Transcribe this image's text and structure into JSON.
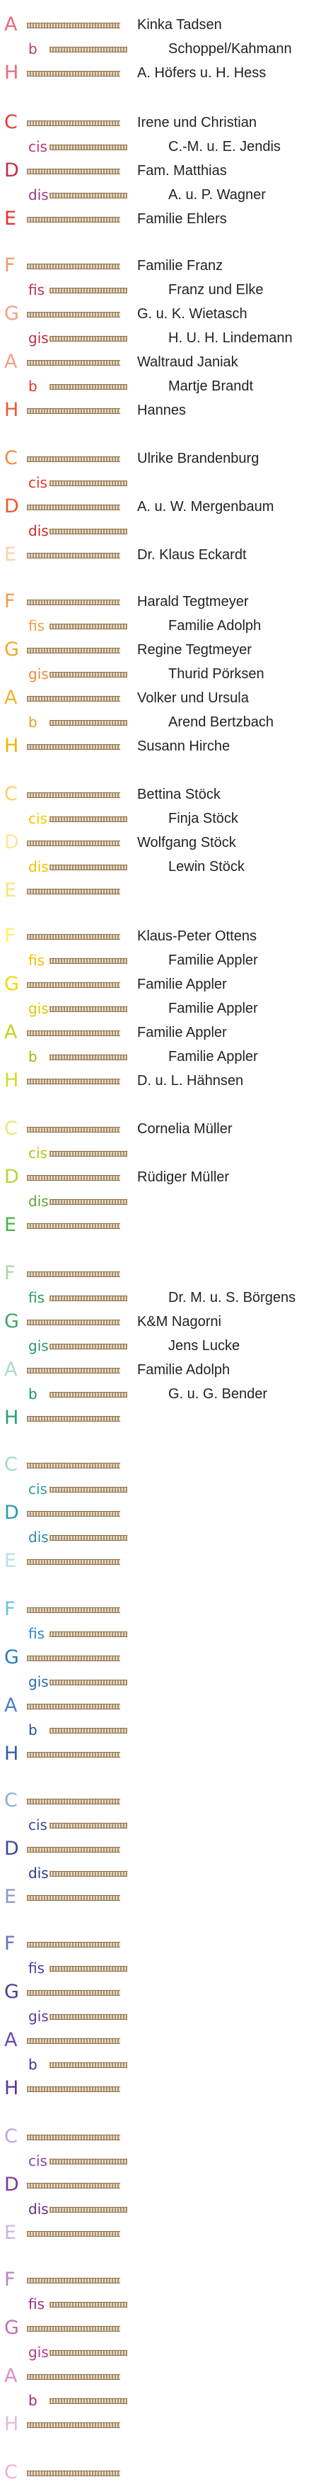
{
  "bells": [
    {
      "note": "A",
      "accidental": false,
      "name": "Kinka Tadsen",
      "color": "#e8697e"
    },
    {
      "note": "b",
      "accidental": true,
      "name": "Schoppel/Kahmann",
      "color": "#b03a89"
    },
    {
      "note": "H",
      "accidental": false,
      "name": "A. Höfers u. H. Hess",
      "color": "#e8697e"
    },
    {
      "note": "C",
      "accidental": false,
      "name": "Irene und Christian",
      "color": "#e53b38"
    },
    {
      "note": "cis",
      "accidental": true,
      "name": "C.-M. u. E. Jendis",
      "color": "#c4317f"
    },
    {
      "note": "D",
      "accidental": false,
      "name": "Fam. Matthias",
      "color": "#c02e4d"
    },
    {
      "note": "dis",
      "accidental": true,
      "name": "A. u. P. Wagner",
      "color": "#9a3a87"
    },
    {
      "note": "E",
      "accidental": false,
      "name": "Familie Ehlers",
      "color": "#e5352f"
    },
    {
      "note": "F",
      "accidental": false,
      "name": "Familie Franz",
      "color": "#f19a6c"
    },
    {
      "note": "fis",
      "accidental": true,
      "name": "Franz und Elke",
      "color": "#c02e4d"
    },
    {
      "note": "G",
      "accidental": false,
      "name": "G. u. K. Wietasch",
      "color": "#f4a08a"
    },
    {
      "note": "gis",
      "accidental": true,
      "name": "H. U. H. Lindemann",
      "color": "#c02e4d"
    },
    {
      "note": "A",
      "accidental": false,
      "name": "Waltraud Janiak",
      "color": "#f4a08a"
    },
    {
      "note": "b",
      "accidental": true,
      "name": "Martje Brandt",
      "color": "#e5352f"
    },
    {
      "note": "H",
      "accidental": false,
      "name": "Hannes",
      "color": "#e95b2c"
    },
    {
      "note": "C",
      "accidental": false,
      "name": "Ulrike Brandenburg",
      "color": "#f28c3c"
    },
    {
      "note": "cis",
      "accidental": true,
      "name": "",
      "color": "#e5352f"
    },
    {
      "note": "D",
      "accidental": false,
      "name": "A. u. W. Mergenbaum",
      "color": "#e95b2c"
    },
    {
      "note": "dis",
      "accidental": true,
      "name": "",
      "color": "#c02e2e"
    },
    {
      "note": "E",
      "accidental": false,
      "name": "Dr. Klaus Eckardt",
      "color": "#fbd2a8"
    },
    {
      "note": "F",
      "accidental": false,
      "name": "Harald Tegtmeyer",
      "color": "#f39b4a"
    },
    {
      "note": "fis",
      "accidental": true,
      "name": "Familie Adolph",
      "color": "#e8a33d"
    },
    {
      "note": "G",
      "accidental": false,
      "name": "Regine Tegtmeyer",
      "color": "#f5a430"
    },
    {
      "note": "gis",
      "accidental": true,
      "name": "Thurid Pörksen",
      "color": "#f28c3c"
    },
    {
      "note": "A",
      "accidental": false,
      "name": "Volker und Ursula",
      "color": "#f5b22e"
    },
    {
      "note": "b",
      "accidental": true,
      "name": "Arend Bertzbach",
      "color": "#e6a11e"
    },
    {
      "note": "H",
      "accidental": false,
      "name": "Susann Hirche",
      "color": "#f6b400"
    },
    {
      "note": "C",
      "accidental": false,
      "name": "Bettina Stöck",
      "color": "#fbd06a"
    },
    {
      "note": "cis",
      "accidental": true,
      "name": "Finja Stöck",
      "color": "#f6c700"
    },
    {
      "note": "D",
      "accidental": false,
      "name": "Wolfgang Stöck",
      "color": "#fde49a"
    },
    {
      "note": "dis",
      "accidental": true,
      "name": "Lewin Stöck",
      "color": "#f2c100"
    },
    {
      "note": "E",
      "accidental": false,
      "name": "",
      "color": "#fbe27a"
    },
    {
      "note": "F",
      "accidental": false,
      "name": "Klaus-Peter Ottens",
      "color": "#fff06a"
    },
    {
      "note": "fis",
      "accidental": true,
      "name": "Familie Appler",
      "color": "#f2c100"
    },
    {
      "note": "G",
      "accidental": false,
      "name": "Familie Appler",
      "color": "#f2d800"
    },
    {
      "note": "gis",
      "accidental": true,
      "name": "Familie Appler",
      "color": "#e3c800"
    },
    {
      "note": "A",
      "accidental": false,
      "name": "Familie Appler",
      "color": "#c8d21e"
    },
    {
      "note": "b",
      "accidental": true,
      "name": "Familie Appler",
      "color": "#b8b000"
    },
    {
      "note": "H",
      "accidental": false,
      "name": "D. u. L. Hähnsen",
      "color": "#d5d92a"
    },
    {
      "note": "C",
      "accidental": false,
      "name": "Cornelia Müller",
      "color": "#e6ea7a"
    },
    {
      "note": "cis",
      "accidental": true,
      "name": "",
      "color": "#b8c020"
    },
    {
      "note": "D",
      "accidental": false,
      "name": "Rüdiger Müller",
      "color": "#b8d33a"
    },
    {
      "note": "dis",
      "accidental": true,
      "name": "",
      "color": "#5aa83a"
    },
    {
      "note": "E",
      "accidental": false,
      "name": "",
      "color": "#4bb04a"
    },
    {
      "note": "F",
      "accidental": false,
      "name": "",
      "color": "#a8d8a0"
    },
    {
      "note": "fis",
      "accidental": true,
      "name": "Dr. M. u. S. Börgens",
      "color": "#2e9e5a"
    },
    {
      "note": "G",
      "accidental": false,
      "name": "K&M Nagorni",
      "color": "#3aa86a"
    },
    {
      "note": "gis",
      "accidental": true,
      "name": "Jens Lucke",
      "color": "#2a9a6a"
    },
    {
      "note": "A",
      "accidental": false,
      "name": "Familie Adolph",
      "color": "#a8dcc0"
    },
    {
      "note": "b",
      "accidental": true,
      "name": "G. u. G. Bender",
      "color": "#1e8e72"
    },
    {
      "note": "H",
      "accidental": false,
      "name": "",
      "color": "#2aa07a"
    },
    {
      "note": "C",
      "accidental": false,
      "name": "",
      "color": "#a0dccc"
    },
    {
      "note": "cis",
      "accidental": true,
      "name": "",
      "color": "#2aa0a0"
    },
    {
      "note": "D",
      "accidental": false,
      "name": "",
      "color": "#2a9ab0"
    },
    {
      "note": "dis",
      "accidental": true,
      "name": "",
      "color": "#2a8ab0"
    },
    {
      "note": "E",
      "accidental": false,
      "name": "",
      "color": "#b8e0ec"
    },
    {
      "note": "F",
      "accidental": false,
      "name": "",
      "color": "#6ac0e0"
    },
    {
      "note": "fis",
      "accidental": true,
      "name": "",
      "color": "#2a8ad0"
    },
    {
      "note": "G",
      "accidental": false,
      "name": "",
      "color": "#2a7ac0"
    },
    {
      "note": "gis",
      "accidental": true,
      "name": "",
      "color": "#2a6ab0"
    },
    {
      "note": "A",
      "accidental": false,
      "name": "",
      "color": "#4a80c8"
    },
    {
      "note": "b",
      "accidental": true,
      "name": "",
      "color": "#2a4aa0"
    },
    {
      "note": "H",
      "accidental": false,
      "name": "",
      "color": "#3a5aa8"
    },
    {
      "note": "C",
      "accidental": false,
      "name": "",
      "color": "#8ab0dc"
    },
    {
      "note": "cis",
      "accidental": true,
      "name": "",
      "color": "#3a4aa0"
    },
    {
      "note": "D",
      "accidental": false,
      "name": "",
      "color": "#3a4a9a"
    },
    {
      "note": "dis",
      "accidental": true,
      "name": "",
      "color": "#2a3a8a"
    },
    {
      "note": "E",
      "accidental": false,
      "name": "",
      "color": "#8a98d0"
    },
    {
      "note": "F",
      "accidental": false,
      "name": "",
      "color": "#6a70c0"
    },
    {
      "note": "fis",
      "accidental": true,
      "name": "",
      "color": "#4a3aa0"
    },
    {
      "note": "G",
      "accidental": false,
      "name": "",
      "color": "#4a3a98"
    },
    {
      "note": "gis",
      "accidental": true,
      "name": "",
      "color": "#5a3aa0"
    },
    {
      "note": "A",
      "accidental": false,
      "name": "",
      "color": "#6a4ab0"
    },
    {
      "note": "b",
      "accidental": true,
      "name": "",
      "color": "#4a2a8a"
    },
    {
      "note": "H",
      "accidental": false,
      "name": "",
      "color": "#5a3a98"
    },
    {
      "note": "C",
      "accidental": false,
      "name": "",
      "color": "#b8a8dc"
    },
    {
      "note": "cis",
      "accidental": true,
      "name": "",
      "color": "#8a4aa8"
    },
    {
      "note": "D",
      "accidental": false,
      "name": "",
      "color": "#7a3a98"
    },
    {
      "note": "dis",
      "accidental": true,
      "name": "",
      "color": "#6a2a88"
    },
    {
      "note": "E",
      "accidental": false,
      "name": "",
      "color": "#c8b8e0"
    },
    {
      "note": "F",
      "accidental": false,
      "name": "",
      "color": "#c080c8"
    },
    {
      "note": "fis",
      "accidental": true,
      "name": "",
      "color": "#a02a88"
    },
    {
      "note": "G",
      "accidental": false,
      "name": "",
      "color": "#c070b8"
    },
    {
      "note": "gis",
      "accidental": true,
      "name": "",
      "color": "#b03a90"
    },
    {
      "note": "A",
      "accidental": false,
      "name": "",
      "color": "#e090c8"
    },
    {
      "note": "b",
      "accidental": true,
      "name": "",
      "color": "#9a2a80"
    },
    {
      "note": "H",
      "accidental": false,
      "name": "",
      "color": "#e8b8d8"
    },
    {
      "note": "C",
      "accidental": false,
      "name": "",
      "color": "#f0b0d0"
    }
  ]
}
